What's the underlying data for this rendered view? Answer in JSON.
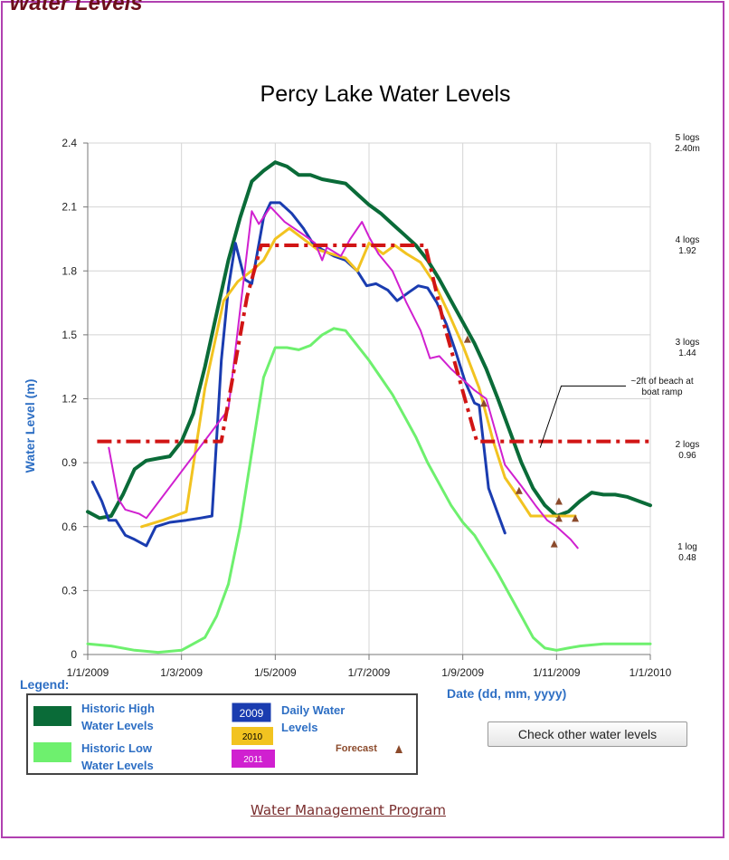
{
  "page": {
    "heading": "Water Levels",
    "check_button": "Check other water levels",
    "footer_link": "Water Management Program"
  },
  "colors": {
    "historic_high": "#0a6b38",
    "historic_low": "#6ef06e",
    "y2009": "#1a3cb0",
    "y2010": "#f2c320",
    "y2011": "#d020d0",
    "target": "#d11515",
    "forecast": "#8b4a2b",
    "axis_label": "#2e6fc4"
  },
  "chart_data": {
    "type": "line",
    "title": "Percy Lake Water Levels",
    "xlabel": "Date (dd, mm, yyyy)",
    "ylabel": "Water Level (m)",
    "x_axis": {
      "unit": "month",
      "range": [
        0,
        12
      ],
      "ticks": [
        {
          "month": 0,
          "label": "1/1/2009"
        },
        {
          "month": 2,
          "label": "1/3/2009"
        },
        {
          "month": 4,
          "label": "1/5/2009"
        },
        {
          "month": 6,
          "label": "1/7/2009"
        },
        {
          "month": 8,
          "label": "1/9/2009"
        },
        {
          "month": 10,
          "label": "1/11/2009"
        },
        {
          "month": 12,
          "label": "1/1/2010"
        }
      ]
    },
    "ylim": [
      0,
      2.4
    ],
    "yticks": [
      {
        "v": 0,
        "label": "0"
      },
      {
        "v": 0.3,
        "label": "0.3"
      },
      {
        "v": 0.6,
        "label": "0.6"
      },
      {
        "v": 0.9,
        "label": "0.9"
      },
      {
        "v": 1.2,
        "label": "1.2"
      },
      {
        "v": 1.5,
        "label": "1.5"
      },
      {
        "v": 1.8,
        "label": "1.8"
      },
      {
        "v": 2.1,
        "label": "2.1"
      },
      {
        "v": 2.4,
        "label": "2.4"
      }
    ],
    "grid": true,
    "right_labels": [
      {
        "v": 2.4,
        "line1": "5 logs",
        "line2": "2.40m"
      },
      {
        "v": 1.92,
        "line1": "4 logs",
        "line2": "1.92"
      },
      {
        "v": 1.44,
        "line1": "3 logs",
        "line2": "1.44"
      },
      {
        "v": 0.96,
        "line1": "2 logs",
        "line2": "0.96"
      },
      {
        "v": 0.48,
        "line1": "1 log",
        "line2": "0.48"
      }
    ],
    "annotation": {
      "line1": "~2ft of beach at",
      "line2": "boat ramp",
      "from": {
        "month": 9.65,
        "v": 0.97
      },
      "to": {
        "month": 10.1,
        "v": 1.26
      }
    },
    "series": [
      {
        "id": "historic_high",
        "color_key": "historic_high",
        "width": 4,
        "points": [
          [
            0,
            0.67
          ],
          [
            0.25,
            0.64
          ],
          [
            0.5,
            0.65
          ],
          [
            0.75,
            0.75
          ],
          [
            1,
            0.87
          ],
          [
            1.25,
            0.91
          ],
          [
            1.5,
            0.92
          ],
          [
            1.75,
            0.93
          ],
          [
            2,
            1.0
          ],
          [
            2.25,
            1.13
          ],
          [
            2.5,
            1.35
          ],
          [
            2.75,
            1.6
          ],
          [
            3,
            1.85
          ],
          [
            3.25,
            2.05
          ],
          [
            3.5,
            2.22
          ],
          [
            3.75,
            2.27
          ],
          [
            4,
            2.31
          ],
          [
            4.25,
            2.29
          ],
          [
            4.5,
            2.25
          ],
          [
            4.75,
            2.25
          ],
          [
            5,
            2.23
          ],
          [
            5.25,
            2.22
          ],
          [
            5.5,
            2.21
          ],
          [
            5.75,
            2.16
          ],
          [
            6,
            2.11
          ],
          [
            6.25,
            2.07
          ],
          [
            6.5,
            2.02
          ],
          [
            6.75,
            1.97
          ],
          [
            7,
            1.92
          ],
          [
            7.25,
            1.85
          ],
          [
            7.5,
            1.76
          ],
          [
            7.75,
            1.66
          ],
          [
            8,
            1.56
          ],
          [
            8.25,
            1.46
          ],
          [
            8.5,
            1.34
          ],
          [
            8.75,
            1.2
          ],
          [
            9,
            1.05
          ],
          [
            9.25,
            0.9
          ],
          [
            9.5,
            0.78
          ],
          [
            9.75,
            0.7
          ],
          [
            10,
            0.65
          ],
          [
            10.25,
            0.67
          ],
          [
            10.5,
            0.72
          ],
          [
            10.75,
            0.76
          ],
          [
            11,
            0.75
          ],
          [
            11.25,
            0.75
          ],
          [
            11.5,
            0.74
          ],
          [
            11.75,
            0.72
          ],
          [
            12,
            0.7
          ]
        ]
      },
      {
        "id": "historic_low",
        "color_key": "historic_low",
        "width": 3,
        "points": [
          [
            0,
            0.05
          ],
          [
            0.5,
            0.04
          ],
          [
            1,
            0.02
          ],
          [
            1.5,
            0.01
          ],
          [
            2,
            0.02
          ],
          [
            2.5,
            0.08
          ],
          [
            2.75,
            0.18
          ],
          [
            3,
            0.33
          ],
          [
            3.25,
            0.6
          ],
          [
            3.5,
            0.95
          ],
          [
            3.75,
            1.3
          ],
          [
            4,
            1.44
          ],
          [
            4.25,
            1.44
          ],
          [
            4.5,
            1.43
          ],
          [
            4.75,
            1.45
          ],
          [
            5,
            1.5
          ],
          [
            5.25,
            1.53
          ],
          [
            5.5,
            1.52
          ],
          [
            5.75,
            1.45
          ],
          [
            6,
            1.38
          ],
          [
            6.25,
            1.3
          ],
          [
            6.5,
            1.22
          ],
          [
            6.75,
            1.12
          ],
          [
            7,
            1.02
          ],
          [
            7.25,
            0.9
          ],
          [
            7.5,
            0.8
          ],
          [
            7.75,
            0.7
          ],
          [
            8,
            0.62
          ],
          [
            8.25,
            0.56
          ],
          [
            8.5,
            0.47
          ],
          [
            8.75,
            0.38
          ],
          [
            9,
            0.28
          ],
          [
            9.25,
            0.18
          ],
          [
            9.5,
            0.08
          ],
          [
            9.75,
            0.03
          ],
          [
            10,
            0.02
          ],
          [
            10.25,
            0.03
          ],
          [
            10.5,
            0.04
          ],
          [
            11,
            0.05
          ],
          [
            12,
            0.05
          ]
        ]
      },
      {
        "id": "y2009",
        "color_key": "y2009",
        "width": 3,
        "points": [
          [
            0.1,
            0.81
          ],
          [
            0.3,
            0.72
          ],
          [
            0.45,
            0.63
          ],
          [
            0.6,
            0.63
          ],
          [
            0.8,
            0.56
          ],
          [
            1.0,
            0.54
          ],
          [
            1.25,
            0.51
          ],
          [
            1.45,
            0.6
          ],
          [
            1.75,
            0.62
          ],
          [
            2.1,
            0.63
          ],
          [
            2.4,
            0.64
          ],
          [
            2.65,
            0.65
          ],
          [
            2.85,
            1.38
          ],
          [
            3.0,
            1.72
          ],
          [
            3.15,
            1.93
          ],
          [
            3.35,
            1.76
          ],
          [
            3.5,
            1.74
          ],
          [
            3.75,
            2.05
          ],
          [
            3.9,
            2.12
          ],
          [
            4.1,
            2.12
          ],
          [
            4.35,
            2.07
          ],
          [
            4.6,
            2.0
          ],
          [
            4.8,
            1.93
          ],
          [
            5.0,
            1.9
          ],
          [
            5.25,
            1.87
          ],
          [
            5.5,
            1.85
          ],
          [
            5.75,
            1.8
          ],
          [
            5.95,
            1.73
          ],
          [
            6.15,
            1.74
          ],
          [
            6.4,
            1.71
          ],
          [
            6.6,
            1.66
          ],
          [
            6.85,
            1.7
          ],
          [
            7.05,
            1.73
          ],
          [
            7.25,
            1.72
          ],
          [
            7.45,
            1.65
          ],
          [
            7.65,
            1.55
          ],
          [
            7.85,
            1.42
          ],
          [
            8.05,
            1.28
          ],
          [
            8.25,
            1.18
          ],
          [
            8.35,
            1.17
          ],
          [
            8.55,
            0.78
          ],
          [
            8.75,
            0.66
          ],
          [
            8.9,
            0.57
          ]
        ]
      },
      {
        "id": "y2010",
        "color_key": "y2010",
        "width": 3,
        "points": [
          [
            1.15,
            0.6
          ],
          [
            1.6,
            0.63
          ],
          [
            2.1,
            0.67
          ],
          [
            2.5,
            1.25
          ],
          [
            2.9,
            1.66
          ],
          [
            3.2,
            1.75
          ],
          [
            3.55,
            1.81
          ],
          [
            3.75,
            1.85
          ],
          [
            4.0,
            1.95
          ],
          [
            4.3,
            2.0
          ],
          [
            4.6,
            1.95
          ],
          [
            4.9,
            1.9
          ],
          [
            5.2,
            1.88
          ],
          [
            5.5,
            1.86
          ],
          [
            5.75,
            1.8
          ],
          [
            6.0,
            1.93
          ],
          [
            6.3,
            1.88
          ],
          [
            6.55,
            1.92
          ],
          [
            6.8,
            1.88
          ],
          [
            7.1,
            1.84
          ],
          [
            7.4,
            1.74
          ],
          [
            7.7,
            1.6
          ],
          [
            8.0,
            1.45
          ],
          [
            8.35,
            1.25
          ],
          [
            8.65,
            1.0
          ],
          [
            8.9,
            0.83
          ],
          [
            9.15,
            0.75
          ],
          [
            9.45,
            0.65
          ],
          [
            9.75,
            0.65
          ],
          [
            10.15,
            0.65
          ],
          [
            10.4,
            0.65
          ]
        ]
      },
      {
        "id": "y2011",
        "color_key": "y2011",
        "width": 2,
        "points": [
          [
            0.45,
            0.97
          ],
          [
            0.65,
            0.73
          ],
          [
            0.8,
            0.68
          ],
          [
            1.1,
            0.66
          ],
          [
            1.25,
            0.64
          ],
          [
            3.0,
            1.15
          ],
          [
            3.5,
            2.08
          ],
          [
            3.65,
            2.02
          ],
          [
            3.9,
            2.1
          ],
          [
            4.2,
            2.03
          ],
          [
            4.6,
            1.97
          ],
          [
            4.85,
            1.93
          ],
          [
            5.0,
            1.85
          ],
          [
            5.1,
            1.91
          ],
          [
            5.4,
            1.87
          ],
          [
            5.6,
            1.95
          ],
          [
            5.85,
            2.03
          ],
          [
            6.0,
            1.96
          ],
          [
            6.2,
            1.88
          ],
          [
            6.5,
            1.8
          ],
          [
            6.8,
            1.65
          ],
          [
            7.1,
            1.52
          ],
          [
            7.3,
            1.39
          ],
          [
            7.5,
            1.4
          ],
          [
            7.75,
            1.34
          ],
          [
            8.0,
            1.29
          ],
          [
            8.25,
            1.24
          ],
          [
            8.5,
            1.2
          ],
          [
            8.9,
            0.89
          ],
          [
            9.25,
            0.79
          ],
          [
            9.55,
            0.7
          ],
          [
            9.8,
            0.63
          ],
          [
            10.0,
            0.6
          ],
          [
            10.3,
            0.54
          ],
          [
            10.45,
            0.5
          ]
        ]
      },
      {
        "id": "y2011_gap",
        "color_key": "y2011",
        "width": 1,
        "dash": "2,3",
        "points": [
          [
            1.25,
            0.64
          ],
          [
            3.0,
            1.15
          ]
        ]
      },
      {
        "id": "target",
        "color_key": "target",
        "width": 4,
        "dash": "16,6,4,6",
        "points": [
          [
            0.2,
            1.0
          ],
          [
            2.85,
            1.0
          ],
          [
            3.4,
            1.68
          ],
          [
            3.7,
            1.92
          ],
          [
            6.75,
            1.92
          ],
          [
            7.2,
            1.92
          ],
          [
            7.6,
            1.55
          ],
          [
            8.3,
            1.0
          ],
          [
            12,
            1.0
          ]
        ]
      }
    ],
    "forecast_points": [
      [
        8.1,
        1.48
      ],
      [
        8.45,
        1.18
      ],
      [
        9.2,
        0.77
      ],
      [
        9.95,
        0.52
      ],
      [
        10.05,
        0.72
      ],
      [
        10.05,
        0.64
      ],
      [
        10.4,
        0.64
      ]
    ],
    "legend": {
      "title": "Legend:",
      "historic_high": [
        "Historic High",
        "Water Levels"
      ],
      "historic_low": [
        "Historic Low",
        "Water Levels"
      ],
      "daily": [
        "Daily Water",
        "Levels"
      ],
      "years": [
        "2009",
        "2010",
        "2011"
      ],
      "forecast": "Forecast"
    }
  }
}
